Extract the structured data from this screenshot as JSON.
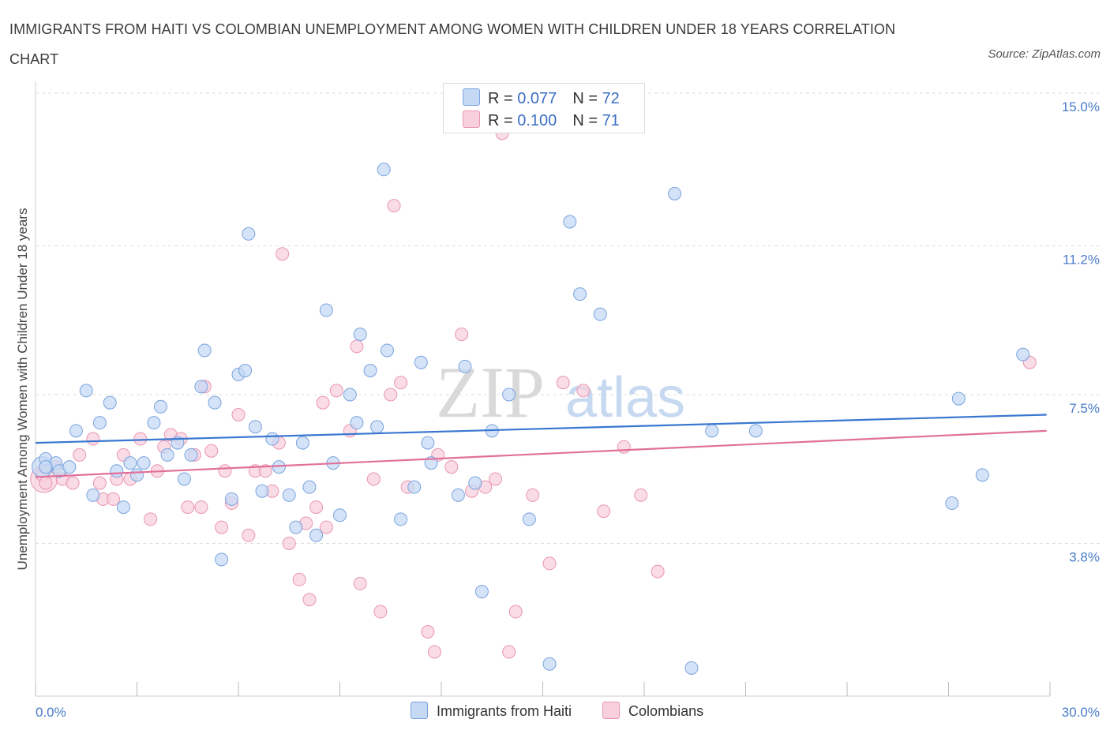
{
  "title": "IMMIGRANTS FROM HAITI VS COLOMBIAN UNEMPLOYMENT AMONG WOMEN WITH CHILDREN UNDER 18 YEARS CORRELATION CHART",
  "source": "Source: ZipAtlas.com",
  "watermark": {
    "zip": "ZIP",
    "atlas": "atlas"
  },
  "legend": {
    "rows": [
      {
        "r_label": "R = ",
        "r_value": "0.077",
        "n_label": "N = ",
        "n_value": "72"
      },
      {
        "r_label": "R = ",
        "r_value": "0.100",
        "n_label": "N = ",
        "n_value": "71"
      }
    ]
  },
  "bottom_legend": [
    "Immigrants from Haiti",
    "Colombians"
  ],
  "colors": {
    "haiti_fill": "#c5d9f4",
    "haiti_stroke": "#7aa3de",
    "haiti_line": "#3a78d0",
    "col_fill": "#f8d0dd",
    "col_stroke": "#e995b1",
    "col_line": "#e0709a",
    "grid": "#dddddd",
    "axis_text": "#4a7cc9"
  },
  "chart_data": {
    "type": "scatter",
    "xlabel": "",
    "ylabel": "Unemployment Among Women with Children Under 18 years",
    "xlim": [
      0,
      30
    ],
    "ylim": [
      0,
      15
    ],
    "x_tick_labels": [
      "0.0%",
      "30.0%"
    ],
    "y_ticks": [
      3.8,
      7.5,
      11.2,
      15.0
    ],
    "y_tick_labels": [
      "3.8%",
      "7.5%",
      "11.2%",
      "15.0%"
    ],
    "grid": "horizontal dashed",
    "legend_placement": "top-center",
    "series": [
      {
        "name": "Immigrants from Haiti",
        "color": "#7aa3de",
        "trend": [
          [
            0,
            6.3
          ],
          [
            29.9,
            7.0
          ]
        ],
        "points": [
          [
            0.3,
            5.9
          ],
          [
            0.6,
            5.8
          ],
          [
            0.7,
            5.6
          ],
          [
            0.3,
            5.7
          ],
          [
            1.0,
            5.7
          ],
          [
            1.2,
            6.6
          ],
          [
            1.5,
            7.6
          ],
          [
            1.7,
            5.0
          ],
          [
            1.9,
            6.8
          ],
          [
            2.2,
            7.3
          ],
          [
            2.4,
            5.6
          ],
          [
            2.6,
            4.7
          ],
          [
            2.8,
            5.8
          ],
          [
            3.0,
            5.5
          ],
          [
            3.2,
            5.8
          ],
          [
            3.5,
            6.8
          ],
          [
            3.7,
            7.2
          ],
          [
            3.9,
            6.0
          ],
          [
            4.2,
            6.3
          ],
          [
            4.4,
            5.4
          ],
          [
            4.6,
            6.0
          ],
          [
            4.9,
            7.7
          ],
          [
            5.0,
            8.6
          ],
          [
            5.3,
            7.3
          ],
          [
            5.5,
            3.4
          ],
          [
            5.8,
            4.9
          ],
          [
            6.0,
            8.0
          ],
          [
            6.2,
            8.1
          ],
          [
            6.3,
            11.5
          ],
          [
            6.5,
            6.7
          ],
          [
            6.7,
            5.1
          ],
          [
            7.0,
            6.4
          ],
          [
            7.2,
            5.7
          ],
          [
            7.5,
            5.0
          ],
          [
            7.7,
            4.2
          ],
          [
            7.9,
            6.3
          ],
          [
            8.1,
            5.2
          ],
          [
            8.3,
            4.0
          ],
          [
            8.6,
            9.6
          ],
          [
            8.8,
            5.8
          ],
          [
            9.0,
            4.5
          ],
          [
            9.3,
            7.5
          ],
          [
            9.5,
            6.8
          ],
          [
            9.6,
            9.0
          ],
          [
            9.9,
            8.1
          ],
          [
            10.1,
            6.7
          ],
          [
            10.4,
            8.6
          ],
          [
            10.3,
            13.1
          ],
          [
            10.8,
            4.4
          ],
          [
            11.2,
            5.2
          ],
          [
            11.4,
            8.3
          ],
          [
            11.6,
            6.3
          ],
          [
            11.7,
            5.8
          ],
          [
            12.5,
            5.0
          ],
          [
            12.7,
            8.2
          ],
          [
            13.0,
            5.3
          ],
          [
            13.2,
            2.6
          ],
          [
            13.5,
            6.6
          ],
          [
            14.0,
            7.5
          ],
          [
            14.6,
            4.4
          ],
          [
            15.2,
            0.8
          ],
          [
            15.8,
            11.8
          ],
          [
            16.1,
            10.0
          ],
          [
            16.7,
            9.5
          ],
          [
            18.9,
            12.5
          ],
          [
            19.4,
            0.7
          ],
          [
            20.0,
            6.6
          ],
          [
            21.3,
            6.6
          ],
          [
            27.1,
            4.8
          ],
          [
            27.3,
            7.4
          ],
          [
            28.0,
            5.5
          ],
          [
            29.2,
            8.5
          ]
        ]
      },
      {
        "name": "Colombians",
        "color": "#e995b1",
        "trend": [
          [
            0,
            5.45
          ],
          [
            29.9,
            6.6
          ]
        ],
        "points": [
          [
            0.2,
            5.5
          ],
          [
            0.3,
            5.3
          ],
          [
            0.6,
            5.7
          ],
          [
            0.8,
            5.4
          ],
          [
            1.1,
            5.3
          ],
          [
            1.3,
            6.0
          ],
          [
            1.7,
            6.4
          ],
          [
            1.9,
            5.3
          ],
          [
            2.0,
            4.9
          ],
          [
            2.3,
            4.9
          ],
          [
            2.4,
            5.4
          ],
          [
            2.6,
            6.0
          ],
          [
            2.8,
            5.4
          ],
          [
            3.1,
            6.4
          ],
          [
            3.4,
            4.4
          ],
          [
            3.6,
            5.6
          ],
          [
            3.8,
            6.2
          ],
          [
            4.0,
            6.5
          ],
          [
            4.3,
            6.4
          ],
          [
            4.5,
            4.7
          ],
          [
            4.7,
            6.0
          ],
          [
            4.9,
            4.7
          ],
          [
            5.0,
            7.7
          ],
          [
            5.2,
            6.1
          ],
          [
            5.5,
            4.2
          ],
          [
            5.6,
            5.6
          ],
          [
            5.8,
            4.8
          ],
          [
            6.0,
            7.0
          ],
          [
            6.3,
            4.0
          ],
          [
            6.5,
            5.6
          ],
          [
            6.8,
            5.6
          ],
          [
            7.0,
            5.1
          ],
          [
            7.2,
            6.3
          ],
          [
            7.3,
            11.0
          ],
          [
            7.5,
            3.8
          ],
          [
            7.8,
            2.9
          ],
          [
            8.0,
            4.3
          ],
          [
            8.1,
            2.4
          ],
          [
            8.3,
            4.7
          ],
          [
            8.5,
            7.3
          ],
          [
            8.6,
            4.2
          ],
          [
            8.9,
            7.6
          ],
          [
            9.3,
            6.6
          ],
          [
            9.5,
            8.7
          ],
          [
            9.6,
            2.8
          ],
          [
            10.0,
            5.4
          ],
          [
            10.2,
            2.1
          ],
          [
            10.5,
            7.5
          ],
          [
            10.6,
            12.2
          ],
          [
            10.8,
            7.8
          ],
          [
            11.0,
            5.2
          ],
          [
            11.6,
            1.6
          ],
          [
            11.8,
            1.1
          ],
          [
            11.9,
            6.0
          ],
          [
            12.3,
            5.7
          ],
          [
            12.6,
            9.0
          ],
          [
            12.9,
            5.1
          ],
          [
            13.3,
            5.2
          ],
          [
            13.6,
            5.4
          ],
          [
            13.8,
            14.0
          ],
          [
            14.0,
            1.1
          ],
          [
            14.2,
            2.1
          ],
          [
            14.7,
            5.0
          ],
          [
            15.2,
            3.3
          ],
          [
            15.6,
            7.8
          ],
          [
            16.2,
            7.6
          ],
          [
            16.8,
            4.6
          ],
          [
            17.4,
            6.2
          ],
          [
            17.9,
            5.0
          ],
          [
            18.4,
            3.1
          ],
          [
            29.4,
            8.3
          ]
        ]
      }
    ]
  }
}
